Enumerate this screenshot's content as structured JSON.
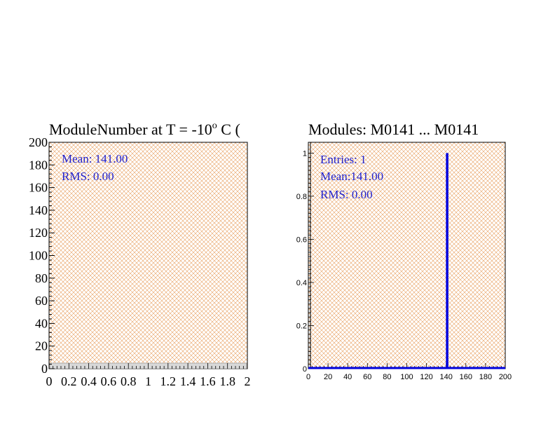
{
  "chart_data": [
    {
      "type": "bar",
      "title": "ModuleNumber at T =  -10",
      "title_superscript": "o",
      "title_suffix": " C (",
      "xlim": [
        0,
        2
      ],
      "ylim": [
        0,
        200
      ],
      "x_tick_labels": [
        "0",
        "0.2",
        "0.4",
        "0.6",
        "0.8",
        "1",
        "1.2",
        "1.4",
        "1.6",
        "1.8",
        "2"
      ],
      "y_tick_labels": [
        "0",
        "20",
        "40",
        "60",
        "80",
        "100",
        "120",
        "140",
        "160",
        "180",
        "200"
      ],
      "stats": {
        "mean": "Mean: 141.00",
        "rms": "RMS:  0.00"
      },
      "fill_color": "#e8a060",
      "grid": false
    },
    {
      "type": "bar",
      "title": "Modules:  M0141 ... M0141",
      "xlim": [
        0,
        200
      ],
      "ylim": [
        0,
        1.05
      ],
      "x_tick_labels": [
        "0",
        "20",
        "40",
        "60",
        "80",
        "100",
        "120",
        "140",
        "160",
        "180",
        "200"
      ],
      "y_tick_labels": [
        "0",
        "0.2",
        "0.4",
        "0.6",
        "0.8",
        "1"
      ],
      "stats": {
        "entries": "Entries:   1",
        "mean": "Mean:141.00",
        "rms": "RMS: 0.00"
      },
      "bins": [
        {
          "x": 141,
          "value": 1
        }
      ],
      "line_color": "#0000dd",
      "fill_color": "#e8a060",
      "grid": false
    }
  ]
}
